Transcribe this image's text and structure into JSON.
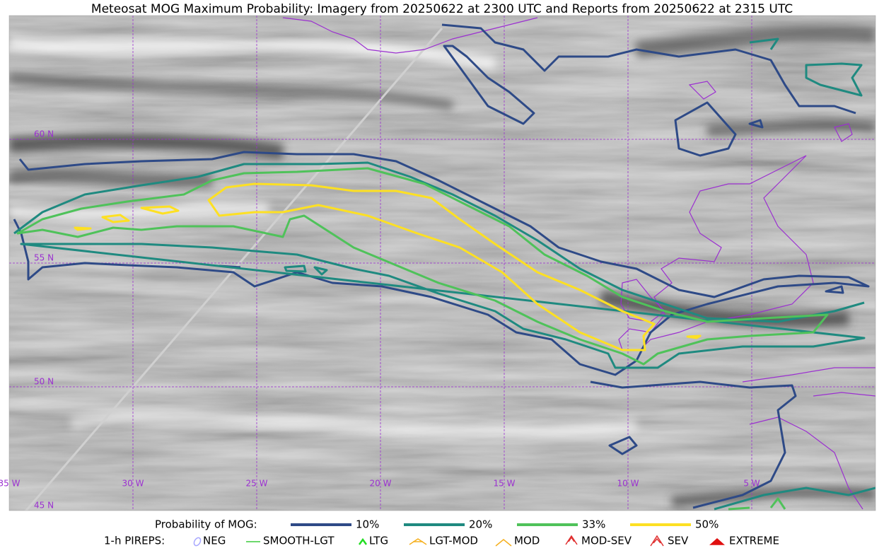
{
  "header": {
    "title": "Meteosat MOG Maximum Probability: Imagery from 20250622 at 2300 UTC and Reports from 20250622 at 2315 UTC"
  },
  "map": {
    "lat_labels": [
      "60 N",
      "55 N",
      "50 N",
      "45 N"
    ],
    "lon_labels": [
      "35 W",
      "30 W",
      "25 W",
      "20 W",
      "15 W",
      "10 W",
      "5 W"
    ]
  },
  "legend": {
    "probability": {
      "label": "Probability of MOG:",
      "items": [
        {
          "label": "10%",
          "color": "#2e4a87"
        },
        {
          "label": "20%",
          "color": "#1f8a80"
        },
        {
          "label": "33%",
          "color": "#4fc25a"
        },
        {
          "label": "50%",
          "color": "#fde023"
        }
      ]
    },
    "pireps": {
      "label": "1-h PIREPS:",
      "items": [
        "NEG",
        "SMOOTH-LGT",
        "LTG",
        "LGT-MOD",
        "MOD",
        "MOD-SEV",
        "SEV",
        "EXTREME"
      ]
    }
  }
}
